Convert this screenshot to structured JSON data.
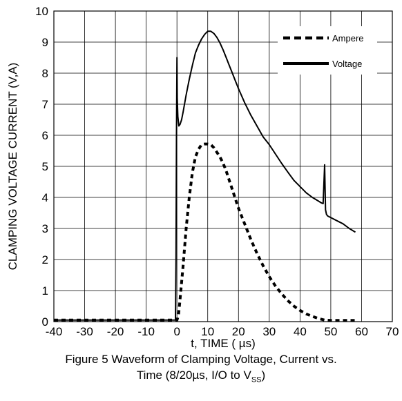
{
  "chart_data": {
    "type": "line",
    "xlabel": "t, TIME ( µs)",
    "ylabel": "CLAMPING VOLTAGE CURRENT (V,A)",
    "xlim": [
      -40,
      70
    ],
    "ylim": [
      0,
      10
    ],
    "xticks": [
      "-40",
      "-30",
      "-20",
      "-10",
      "0",
      "10",
      "20",
      "30",
      "40",
      "50",
      "60",
      "70"
    ],
    "yticks": [
      "0",
      "1",
      "2",
      "3",
      "4",
      "5",
      "6",
      "7",
      "8",
      "9",
      "10"
    ],
    "grid": true,
    "legend_position": "top-right",
    "series": [
      {
        "name": "Ampere",
        "style": "dashed",
        "color": "#000000",
        "x": [
          -40,
          -30,
          -20,
          -10,
          -2,
          0,
          0.5,
          1,
          2,
          3,
          4,
          5,
          6,
          7,
          8,
          9,
          10,
          11,
          12,
          13,
          14,
          15,
          16,
          17,
          18,
          19,
          20,
          22,
          24,
          26,
          28,
          30,
          32,
          34,
          36,
          38,
          40,
          42,
          44,
          46,
          48,
          50,
          52,
          54,
          56,
          58
        ],
        "y": [
          0.05,
          0.05,
          0.05,
          0.05,
          0.05,
          0.05,
          0.2,
          0.7,
          1.8,
          3.0,
          4.0,
          4.8,
          5.3,
          5.55,
          5.7,
          5.72,
          5.72,
          5.7,
          5.6,
          5.45,
          5.3,
          5.1,
          4.85,
          4.55,
          4.25,
          3.95,
          3.65,
          3.15,
          2.65,
          2.2,
          1.8,
          1.45,
          1.15,
          0.9,
          0.68,
          0.5,
          0.36,
          0.25,
          0.17,
          0.1,
          0.05,
          0.04,
          0.04,
          0.04,
          0.04,
          0.04
        ]
      },
      {
        "name": "Voltage",
        "style": "solid",
        "color": "#000000",
        "x": [
          -40,
          -30,
          -20,
          -10,
          -2,
          -0.5,
          -0.3,
          -0.15,
          0,
          0.1,
          0.3,
          0.6,
          1,
          1.5,
          2,
          3,
          4,
          5,
          6,
          7,
          8,
          9,
          10,
          11,
          12,
          13,
          14,
          15,
          16,
          17,
          18,
          19,
          20,
          22,
          24,
          26,
          28,
          30,
          32,
          34,
          36,
          38,
          40,
          42,
          44,
          46,
          47,
          47.5,
          48,
          48.3,
          48.6,
          49,
          50,
          52,
          54,
          56,
          58
        ],
        "y": [
          0.05,
          0.05,
          0.05,
          0.05,
          0.05,
          0.05,
          2.0,
          6.0,
          8.5,
          7.2,
          6.6,
          6.3,
          6.35,
          6.5,
          6.75,
          7.3,
          7.8,
          8.25,
          8.65,
          8.9,
          9.1,
          9.25,
          9.35,
          9.35,
          9.28,
          9.15,
          8.97,
          8.75,
          8.5,
          8.25,
          8.0,
          7.75,
          7.5,
          7.05,
          6.65,
          6.3,
          5.95,
          5.7,
          5.4,
          5.1,
          4.82,
          4.55,
          4.35,
          4.15,
          4.0,
          3.88,
          3.82,
          3.8,
          5.05,
          3.6,
          3.45,
          3.4,
          3.35,
          3.25,
          3.15,
          3.0,
          2.88
        ]
      }
    ]
  },
  "caption": {
    "line1": "Figure 5 Waveform of Clamping Voltage, Current vs.",
    "line2_prefix": "Time (8/20µs, I/O to  V",
    "line2_sub": "SS",
    "line2_suffix": ")"
  }
}
